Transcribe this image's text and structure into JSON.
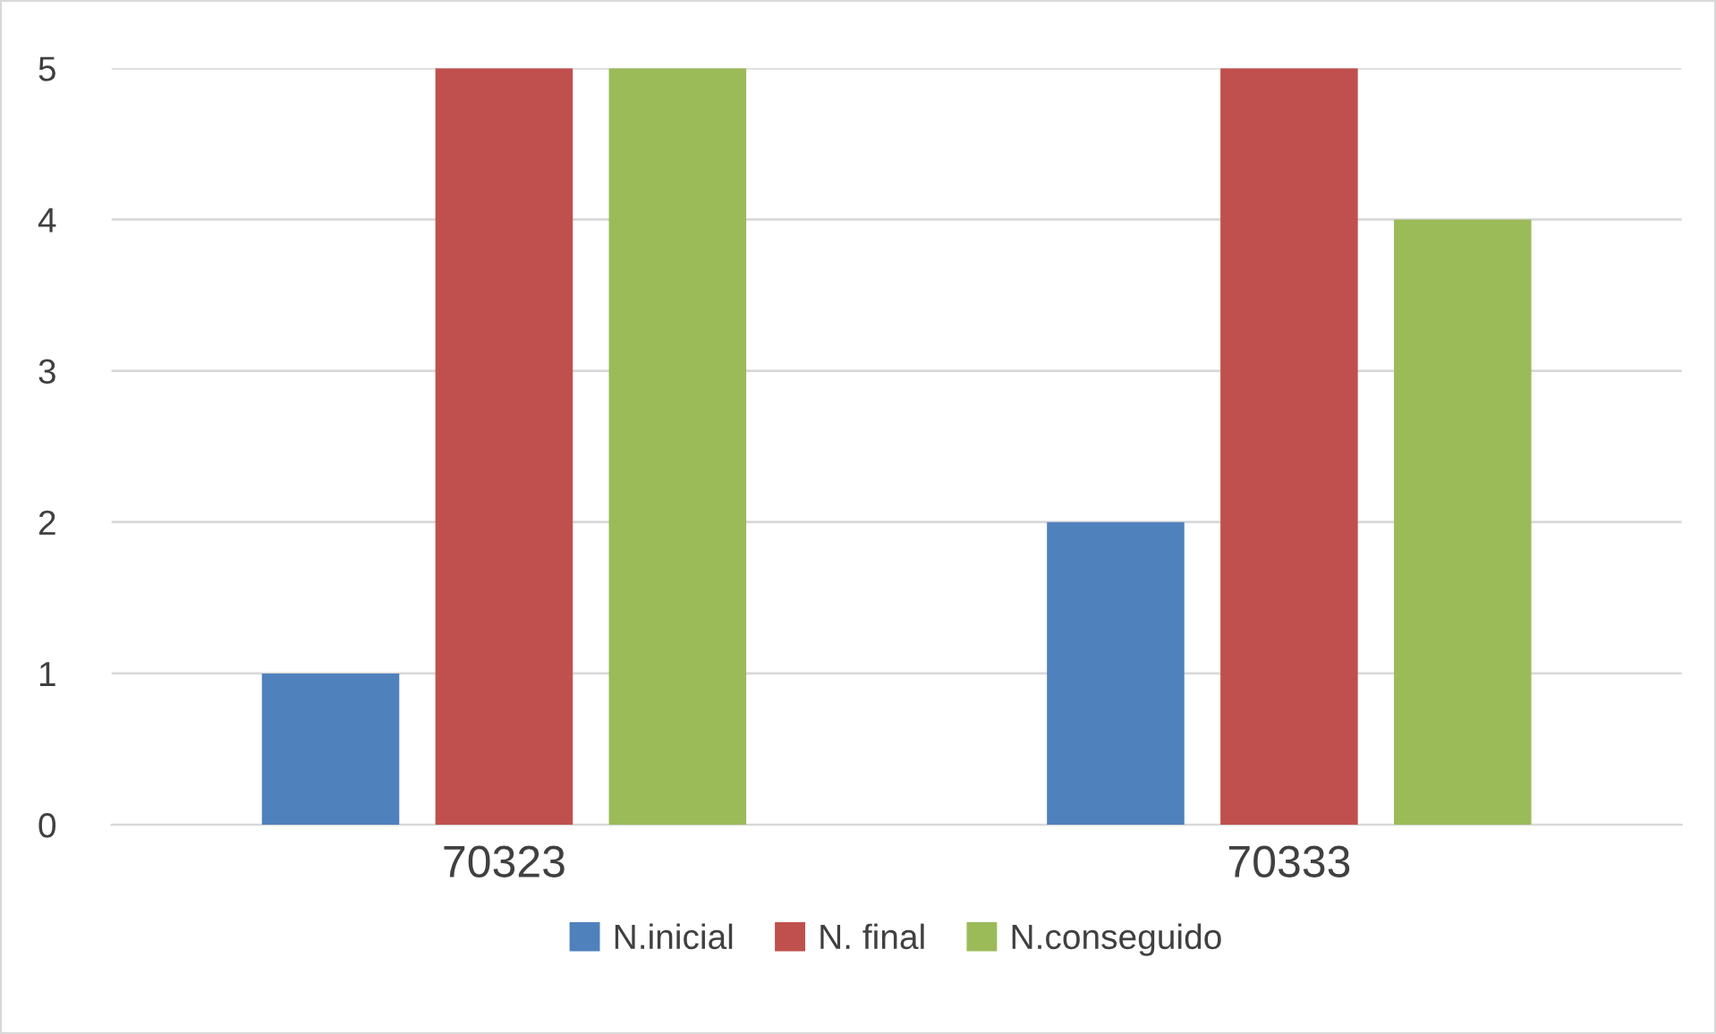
{
  "chart_data": {
    "type": "bar",
    "categories": [
      "70323",
      "70333"
    ],
    "series": [
      {
        "name": "N.inicial",
        "color": "#4f81bd",
        "values": [
          1,
          2
        ]
      },
      {
        "name": "N. final",
        "color": "#c0504d",
        "values": [
          5,
          5
        ]
      },
      {
        "name": "N.conseguido",
        "color": "#9bbb59",
        "values": [
          5,
          4
        ]
      }
    ],
    "ylim": [
      0,
      5
    ],
    "yticks": [
      0,
      1,
      2,
      3,
      4,
      5
    ],
    "grid": "y",
    "legend": "bottom"
  }
}
